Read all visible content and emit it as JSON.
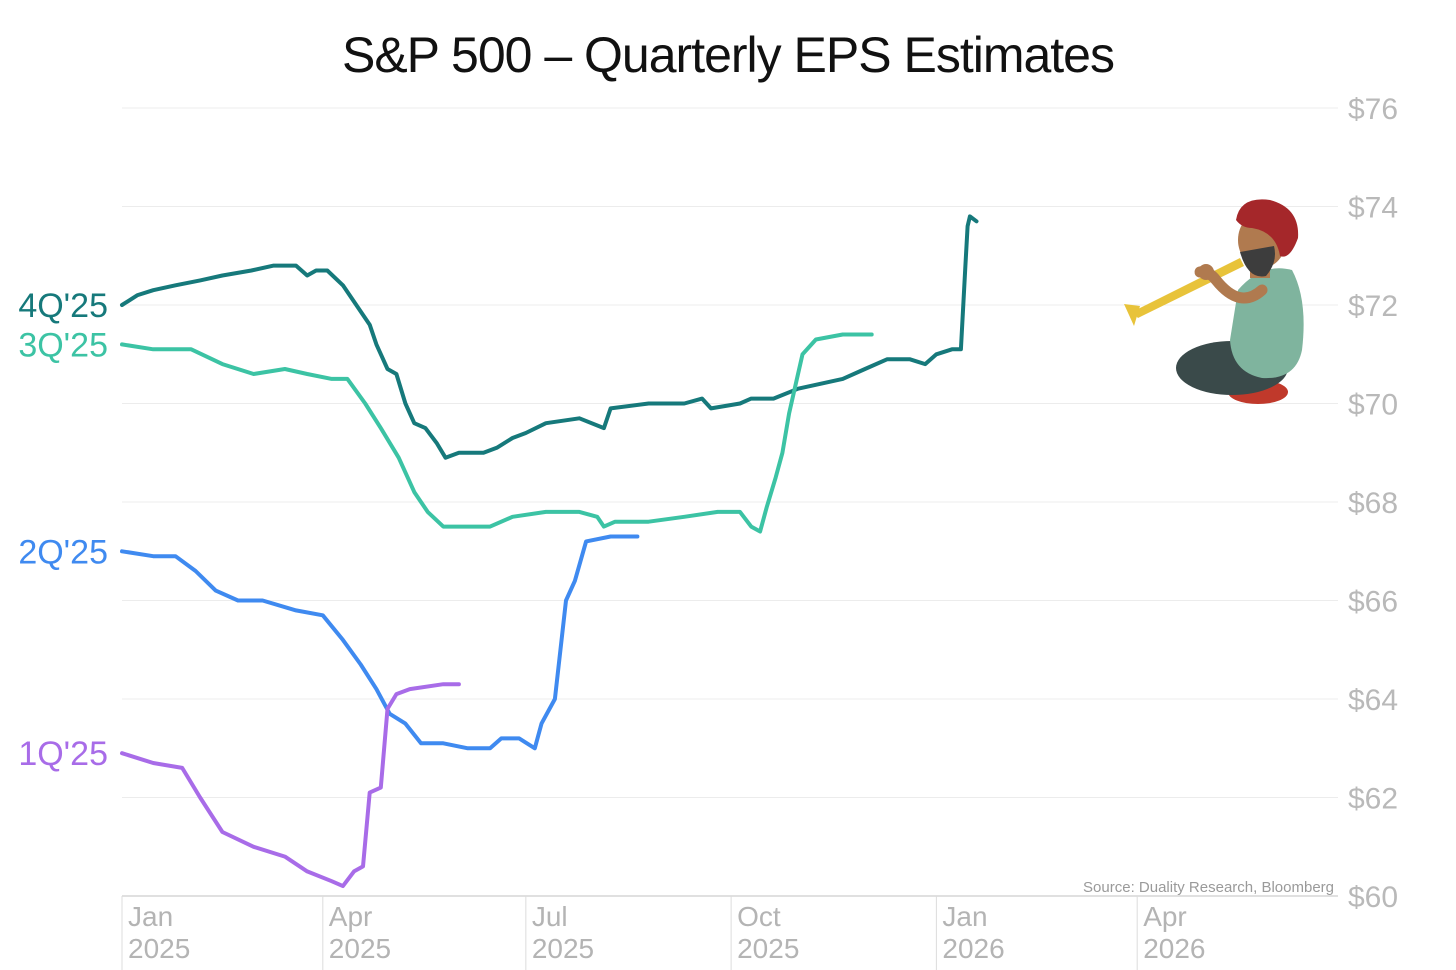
{
  "chart_data": {
    "type": "line",
    "title": "S&P 500 – Quarterly EPS Estimates",
    "source": "Source: Duality Research, Bloomberg",
    "ylim": [
      60,
      76
    ],
    "yticks": [
      60,
      62,
      64,
      66,
      68,
      70,
      72,
      74,
      76
    ],
    "ytick_labels": [
      "$60",
      "$62",
      "$64",
      "$66",
      "$68",
      "$70",
      "$72",
      "$74",
      "$76"
    ],
    "y_axis_side": "right",
    "grid": true,
    "xlim": [
      "2025-01-01",
      "2026-06-30"
    ],
    "xticks": [
      {
        "date": "2025-01-01",
        "line1": "Jan",
        "line2": "2025"
      },
      {
        "date": "2025-04-01",
        "line1": "Apr",
        "line2": "2025"
      },
      {
        "date": "2025-07-01",
        "line1": "Jul",
        "line2": "2025"
      },
      {
        "date": "2025-10-01",
        "line1": "Oct",
        "line2": "2025"
      },
      {
        "date": "2026-01-01",
        "line1": "Jan",
        "line2": "2026"
      },
      {
        "date": "2026-04-01",
        "line1": "Apr",
        "line2": "2026"
      }
    ],
    "legend": "labels-left",
    "series": [
      {
        "name": "4Q'25",
        "color": "#16797b",
        "points": [
          [
            "2025-01-01",
            72.0
          ],
          [
            "2025-01-08",
            72.2
          ],
          [
            "2025-01-15",
            72.3
          ],
          [
            "2025-01-25",
            72.4
          ],
          [
            "2025-02-05",
            72.5
          ],
          [
            "2025-02-15",
            72.6
          ],
          [
            "2025-02-28",
            72.7
          ],
          [
            "2025-03-10",
            72.8
          ],
          [
            "2025-03-20",
            72.8
          ],
          [
            "2025-03-25",
            72.6
          ],
          [
            "2025-03-29",
            72.7
          ],
          [
            "2025-04-03",
            72.7
          ],
          [
            "2025-04-10",
            72.4
          ],
          [
            "2025-04-16",
            72.0
          ],
          [
            "2025-04-22",
            71.6
          ],
          [
            "2025-04-25",
            71.2
          ],
          [
            "2025-04-30",
            70.7
          ],
          [
            "2025-05-04",
            70.6
          ],
          [
            "2025-05-08",
            70.0
          ],
          [
            "2025-05-12",
            69.6
          ],
          [
            "2025-05-17",
            69.5
          ],
          [
            "2025-05-22",
            69.2
          ],
          [
            "2025-05-26",
            68.9
          ],
          [
            "2025-06-01",
            69.0
          ],
          [
            "2025-06-12",
            69.0
          ],
          [
            "2025-06-18",
            69.1
          ],
          [
            "2025-06-25",
            69.3
          ],
          [
            "2025-07-01",
            69.4
          ],
          [
            "2025-07-10",
            69.6
          ],
          [
            "2025-07-25",
            69.7
          ],
          [
            "2025-08-05",
            69.5
          ],
          [
            "2025-08-08",
            69.9
          ],
          [
            "2025-08-25",
            70.0
          ],
          [
            "2025-09-10",
            70.0
          ],
          [
            "2025-09-18",
            70.1
          ],
          [
            "2025-09-22",
            69.9
          ],
          [
            "2025-10-05",
            70.0
          ],
          [
            "2025-10-10",
            70.1
          ],
          [
            "2025-10-20",
            70.1
          ],
          [
            "2025-10-31",
            70.3
          ],
          [
            "2025-11-10",
            70.4
          ],
          [
            "2025-11-20",
            70.5
          ],
          [
            "2025-11-30",
            70.7
          ],
          [
            "2025-12-10",
            70.9
          ],
          [
            "2025-12-20",
            70.9
          ],
          [
            "2025-12-27",
            70.8
          ],
          [
            "2026-01-01",
            71.0
          ],
          [
            "2026-01-08",
            71.1
          ],
          [
            "2026-01-12",
            71.1
          ],
          [
            "2026-01-14",
            72.8
          ],
          [
            "2026-01-15",
            73.6
          ],
          [
            "2026-01-16",
            73.8
          ],
          [
            "2026-01-19",
            73.7
          ]
        ]
      },
      {
        "name": "3Q'25",
        "color": "#3cc3a4",
        "points": [
          [
            "2025-01-01",
            71.2
          ],
          [
            "2025-01-15",
            71.1
          ],
          [
            "2025-02-01",
            71.1
          ],
          [
            "2025-02-15",
            70.8
          ],
          [
            "2025-03-01",
            70.6
          ],
          [
            "2025-03-15",
            70.7
          ],
          [
            "2025-03-25",
            70.6
          ],
          [
            "2025-04-05",
            70.5
          ],
          [
            "2025-04-12",
            70.5
          ],
          [
            "2025-04-20",
            70.0
          ],
          [
            "2025-04-27",
            69.5
          ],
          [
            "2025-05-05",
            68.9
          ],
          [
            "2025-05-12",
            68.2
          ],
          [
            "2025-05-18",
            67.8
          ],
          [
            "2025-05-25",
            67.5
          ],
          [
            "2025-06-01",
            67.5
          ],
          [
            "2025-06-15",
            67.5
          ],
          [
            "2025-06-25",
            67.7
          ],
          [
            "2025-07-10",
            67.8
          ],
          [
            "2025-07-25",
            67.8
          ],
          [
            "2025-08-02",
            67.7
          ],
          [
            "2025-08-05",
            67.5
          ],
          [
            "2025-08-10",
            67.6
          ],
          [
            "2025-08-25",
            67.6
          ],
          [
            "2025-09-10",
            67.7
          ],
          [
            "2025-09-25",
            67.8
          ],
          [
            "2025-10-05",
            67.8
          ],
          [
            "2025-10-10",
            67.5
          ],
          [
            "2025-10-14",
            67.4
          ],
          [
            "2025-10-17",
            67.9
          ],
          [
            "2025-10-21",
            68.5
          ],
          [
            "2025-10-24",
            69.0
          ],
          [
            "2025-10-27",
            69.8
          ],
          [
            "2025-10-30",
            70.4
          ],
          [
            "2025-11-02",
            71.0
          ],
          [
            "2025-11-08",
            71.3
          ],
          [
            "2025-11-20",
            71.4
          ],
          [
            "2025-12-03",
            71.4
          ]
        ]
      },
      {
        "name": "2Q'25",
        "color": "#3f8af0",
        "points": [
          [
            "2025-01-01",
            67.0
          ],
          [
            "2025-01-15",
            66.9
          ],
          [
            "2025-01-25",
            66.9
          ],
          [
            "2025-02-03",
            66.6
          ],
          [
            "2025-02-12",
            66.2
          ],
          [
            "2025-02-22",
            66.0
          ],
          [
            "2025-03-05",
            66.0
          ],
          [
            "2025-03-20",
            65.8
          ],
          [
            "2025-04-01",
            65.7
          ],
          [
            "2025-04-10",
            65.2
          ],
          [
            "2025-04-18",
            64.7
          ],
          [
            "2025-04-25",
            64.2
          ],
          [
            "2025-05-01",
            63.7
          ],
          [
            "2025-05-08",
            63.5
          ],
          [
            "2025-05-15",
            63.1
          ],
          [
            "2025-05-25",
            63.1
          ],
          [
            "2025-06-05",
            63.0
          ],
          [
            "2025-06-15",
            63.0
          ],
          [
            "2025-06-20",
            63.2
          ],
          [
            "2025-06-28",
            63.2
          ],
          [
            "2025-07-05",
            63.0
          ],
          [
            "2025-07-08",
            63.5
          ],
          [
            "2025-07-14",
            64.0
          ],
          [
            "2025-07-19",
            66.0
          ],
          [
            "2025-07-23",
            66.4
          ],
          [
            "2025-07-28",
            67.2
          ],
          [
            "2025-08-08",
            67.3
          ],
          [
            "2025-08-20",
            67.3
          ]
        ]
      },
      {
        "name": "1Q'25",
        "color": "#a86ce8",
        "points": [
          [
            "2025-01-01",
            62.9
          ],
          [
            "2025-01-15",
            62.7
          ],
          [
            "2025-01-28",
            62.6
          ],
          [
            "2025-02-05",
            62.0
          ],
          [
            "2025-02-15",
            61.3
          ],
          [
            "2025-03-01",
            61.0
          ],
          [
            "2025-03-15",
            60.8
          ],
          [
            "2025-03-25",
            60.5
          ],
          [
            "2025-04-05",
            60.3
          ],
          [
            "2025-04-10",
            60.2
          ],
          [
            "2025-04-15",
            60.5
          ],
          [
            "2025-04-19",
            60.6
          ],
          [
            "2025-04-22",
            62.1
          ],
          [
            "2025-04-27",
            62.2
          ],
          [
            "2025-04-30",
            63.8
          ],
          [
            "2025-05-04",
            64.1
          ],
          [
            "2025-05-10",
            64.2
          ],
          [
            "2025-05-25",
            64.3
          ],
          [
            "2025-06-01",
            64.3
          ]
        ]
      }
    ]
  },
  "illustration": {
    "subject": "turbaned-man-playing-horn",
    "colors": {
      "turban": "#a5272a",
      "skin": "#b07a4f",
      "shirt": "#7fb49e",
      "pants": "#3a4a4a",
      "horn": "#e8c33a",
      "cushion": "#c0392b"
    }
  }
}
